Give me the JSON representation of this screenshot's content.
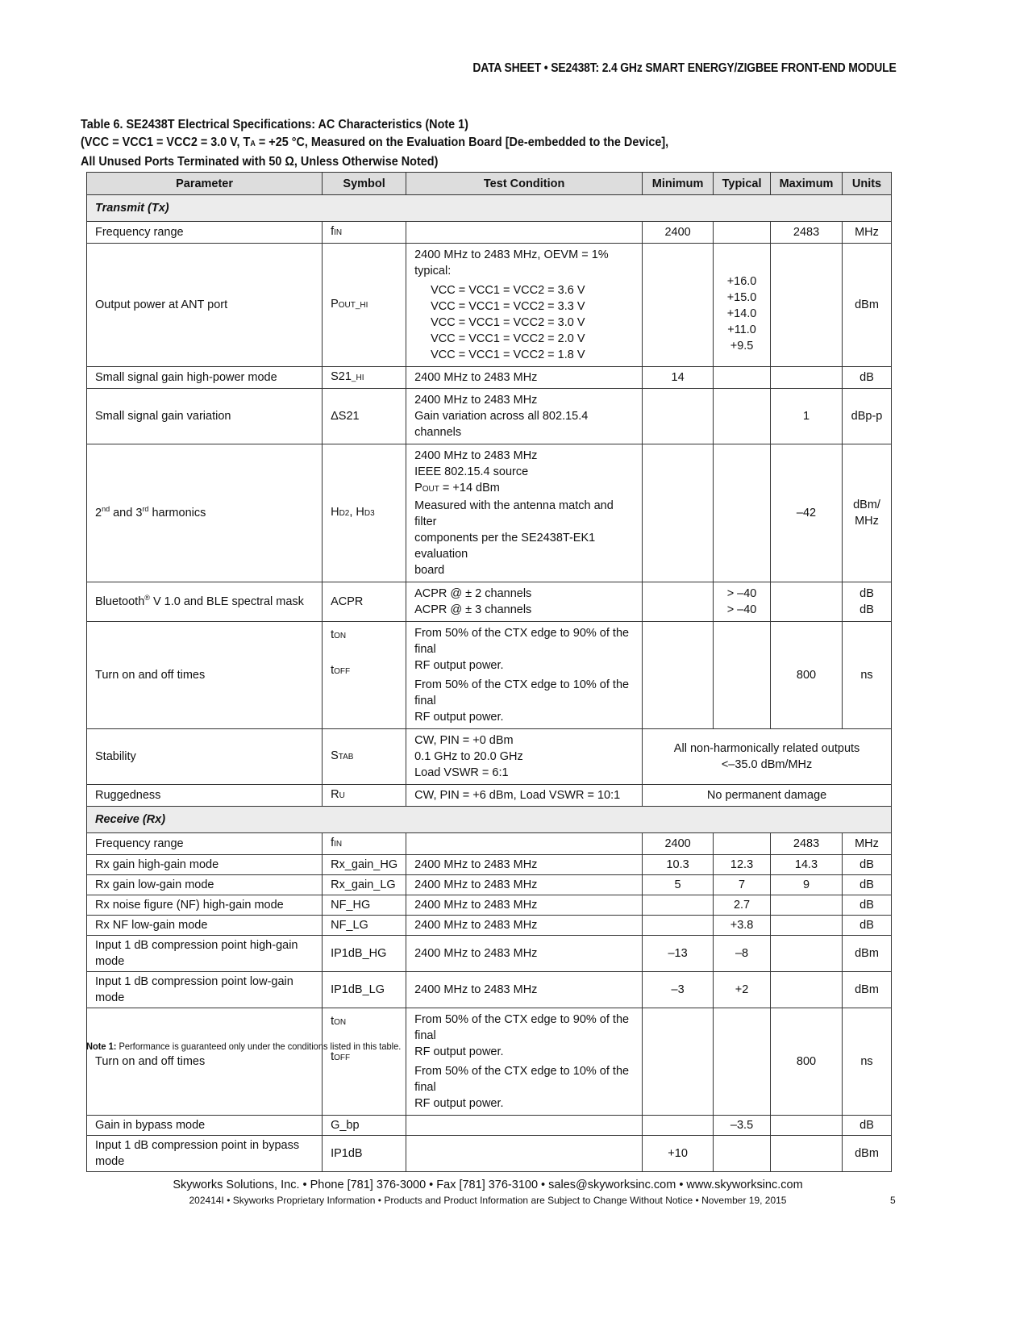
{
  "header": "DATA SHEET  •  SE2438T: 2.4 GHz SMART ENERGY/ZIGBEE FRONT-END MODULE",
  "title": {
    "line1": "Table 6. SE2438T Electrical Specifications: AC Characteristics (Note 1)",
    "line2a": "(VCC = VCC1 = VCC2 = 3.0 V, T",
    "line2sub": "A",
    "line2b": " = +25 °C, Measured on the Evaluation Board [De-embedded to the Device],",
    "line3": "All Unused Ports Terminated with 50 Ω, Unless Otherwise Noted)"
  },
  "columns": [
    "Parameter",
    "Symbol",
    "Test Condition",
    "Minimum",
    "Typical",
    "Maximum",
    "Units"
  ],
  "sections": [
    {
      "label": "Transmit (Tx)",
      "rows": [
        {
          "param": [
            {
              "t": "Frequency range"
            }
          ],
          "sym": [
            [
              {
                "t": "f"
              },
              {
                "s": "IN"
              }
            ]
          ],
          "cond": [],
          "min": [
            "2400"
          ],
          "typ": [],
          "max": [
            "2483"
          ],
          "units": [
            "MHz"
          ]
        },
        {
          "param": [
            {
              "t": "Output power at ANT port"
            }
          ],
          "sym": [
            [
              {
                "t": "P"
              },
              {
                "s": "OUT_HI"
              }
            ]
          ],
          "cond": [
            [
              {
                "t": "2400 MHz to 2483 MHz, OEVM = 1% typical:"
              }
            ]
          ],
          "cond_ind": [
            "VCC = VCC1 = VCC2 = 3.6 V",
            "VCC = VCC1 = VCC2 = 3.3 V",
            "VCC = VCC1 = VCC2 = 3.0 V",
            "VCC = VCC1 = VCC2 = 2.0 V",
            "VCC = VCC1 = VCC2 = 1.8 V"
          ],
          "min": [],
          "typ": [
            "+16.0",
            "+15.0",
            "+14.0",
            "+11.0",
            "+9.5"
          ],
          "typ_pad": true,
          "max": [],
          "units": [
            "dBm"
          ]
        },
        {
          "param": [
            {
              "t": "Small signal gain high-power mode"
            }
          ],
          "sym": [
            [
              {
                "t": "S21"
              },
              {
                "s": "_HI"
              }
            ]
          ],
          "cond": [
            [
              {
                "t": "2400 MHz to 2483 MHz"
              }
            ]
          ],
          "min": [
            "14"
          ],
          "typ": [],
          "max": [],
          "units": [
            "dB"
          ]
        },
        {
          "param": [
            {
              "t": "Small signal gain variation"
            }
          ],
          "sym": [
            [
              {
                "t": "ΔS21"
              }
            ]
          ],
          "cond": [
            [
              {
                "t": "2400 MHz to 2483 MHz"
              }
            ],
            [
              {
                "t": "Gain variation across all 802.15.4 channels"
              }
            ]
          ],
          "min": [],
          "typ": [],
          "max": [
            "1"
          ],
          "units": [
            "dBp-p"
          ]
        },
        {
          "param": [
            {
              "t": "2"
            },
            {
              "sup": "nd"
            },
            {
              "t": " and 3"
            },
            {
              "sup": "rd"
            },
            {
              "t": " harmonics"
            }
          ],
          "sym": [
            [
              {
                "t": "H"
              },
              {
                "s": "D2"
              },
              {
                "t": ", H"
              },
              {
                "s": "D3"
              }
            ]
          ],
          "cond": [
            [
              {
                "t": "2400 MHz to 2483 MHz"
              }
            ],
            [
              {
                "t": "IEEE 802.15.4 source"
              }
            ],
            [
              {
                "t": "P"
              },
              {
                "s": "OUT"
              },
              {
                "t": " = +14 dBm"
              }
            ],
            [
              {
                "t": "Measured with the antenna match and filter"
              }
            ],
            [
              {
                "t": "components per the SE2438T-EK1 evaluation"
              }
            ],
            [
              {
                "t": "board"
              }
            ]
          ],
          "min": [],
          "typ": [],
          "max": [
            "–42"
          ],
          "units": [
            "dBm/",
            "MHz"
          ]
        },
        {
          "param": [
            {
              "t": "Bluetooth"
            },
            {
              "sup": "®"
            },
            {
              "t": " V 1.0 and BLE spectral mask"
            }
          ],
          "sym": [
            [
              {
                "t": "ACPR"
              }
            ]
          ],
          "cond": [
            [
              {
                "t": "ACPR @ ± 2 channels"
              }
            ],
            [
              {
                "t": "ACPR @ ± 3 channels"
              }
            ]
          ],
          "min": [],
          "typ": [
            "> –40",
            "> –40"
          ],
          "max": [],
          "units": [
            "dB",
            "dB"
          ]
        },
        {
          "param": [
            {
              "t": "Turn on and off times"
            }
          ],
          "sym": [
            [
              {
                "t": "t"
              },
              {
                "s": "ON"
              }
            ],
            [
              {
                "t": "t"
              },
              {
                "s": "OFF"
              }
            ]
          ],
          "cond": [
            [
              {
                "t": "From 50% of the CTX edge to 90% of the final"
              }
            ],
            [
              {
                "t": "RF output power."
              }
            ],
            [
              {
                "t": "From 50% of the CTX edge to 10% of the final"
              }
            ],
            [
              {
                "t": "RF output power."
              }
            ]
          ],
          "min": [],
          "typ": [],
          "max": [
            "800"
          ],
          "units": [
            "ns"
          ],
          "turn": true
        },
        {
          "param": [
            {
              "t": "Stability"
            }
          ],
          "sym": [
            [
              {
                "t": "S"
              },
              {
                "s": "TAB"
              }
            ]
          ],
          "cond": [
            [
              {
                "t": "CW, PIN = +0 dBm"
              }
            ],
            [
              {
                "t": "0.1 GHz to 20.0 GHz"
              }
            ],
            [
              {
                "t": "Load VSWR = 6:1"
              }
            ]
          ],
          "span": [
            "All non-harmonically related outputs",
            "<–35.0  dBm/MHz"
          ]
        },
        {
          "param": [
            {
              "t": "Ruggedness"
            }
          ],
          "sym": [
            [
              {
                "t": "R"
              },
              {
                "s": "U"
              }
            ]
          ],
          "cond": [
            [
              {
                "t": "CW, PIN = +6 dBm, Load VSWR = 10:1"
              }
            ]
          ],
          "span": [
            "No permanent damage"
          ]
        }
      ]
    },
    {
      "label": "Receive (Rx)",
      "rows": [
        {
          "param": [
            {
              "t": "Frequency range"
            }
          ],
          "sym": [
            [
              {
                "t": "f"
              },
              {
                "s": "IN"
              }
            ]
          ],
          "cond": [],
          "min": [
            "2400"
          ],
          "typ": [],
          "max": [
            "2483"
          ],
          "units": [
            "MHz"
          ]
        },
        {
          "param": [
            {
              "t": "Rx gain high-gain mode"
            }
          ],
          "sym": [
            [
              {
                "t": "Rx_gain_HG"
              }
            ]
          ],
          "cond": [
            [
              {
                "t": "2400 MHz to 2483 MHz"
              }
            ]
          ],
          "min": [
            "10.3"
          ],
          "typ": [
            "12.3"
          ],
          "max": [
            "14.3"
          ],
          "units": [
            "dB"
          ]
        },
        {
          "param": [
            {
              "t": "Rx gain low-gain mode"
            }
          ],
          "sym": [
            [
              {
                "t": "Rx_gain_LG"
              }
            ]
          ],
          "cond": [
            [
              {
                "t": "2400 MHz to 2483 MHz"
              }
            ]
          ],
          "min": [
            "5"
          ],
          "typ": [
            "7"
          ],
          "max": [
            "9"
          ],
          "units": [
            "dB"
          ]
        },
        {
          "param": [
            {
              "t": "Rx noise figure (NF) high-gain mode"
            }
          ],
          "sym": [
            [
              {
                "t": "NF_HG"
              }
            ]
          ],
          "cond": [
            [
              {
                "t": "2400 MHz to 2483 MHz"
              }
            ]
          ],
          "min": [],
          "typ": [
            "2.7"
          ],
          "max": [],
          "units": [
            "dB"
          ]
        },
        {
          "param": [
            {
              "t": "Rx NF low-gain mode"
            }
          ],
          "sym": [
            [
              {
                "t": "NF_LG"
              }
            ]
          ],
          "cond": [
            [
              {
                "t": "2400 MHz to 2483 MHz"
              }
            ]
          ],
          "min": [],
          "typ": [
            "+3.8"
          ],
          "max": [],
          "units": [
            "dB"
          ]
        },
        {
          "param": [
            {
              "t": "Input 1 dB compression point high-gain mode"
            }
          ],
          "sym": [
            [
              {
                "t": "IP1dB_HG"
              }
            ]
          ],
          "cond": [
            [
              {
                "t": "2400 MHz to 2483 MHz"
              }
            ]
          ],
          "min": [
            "–13"
          ],
          "typ": [
            "–8"
          ],
          "max": [],
          "units": [
            "dBm"
          ]
        },
        {
          "param": [
            {
              "t": "Input 1 dB compression point low-gain mode"
            }
          ],
          "sym": [
            [
              {
                "t": "IP1dB_LG"
              }
            ]
          ],
          "cond": [
            [
              {
                "t": "2400 MHz to 2483 MHz"
              }
            ]
          ],
          "min": [
            "–3"
          ],
          "typ": [
            "+2"
          ],
          "max": [],
          "units": [
            "dBm"
          ]
        },
        {
          "param": [
            {
              "t": "Turn on and off times"
            }
          ],
          "sym": [
            [
              {
                "t": "t"
              },
              {
                "s": "ON"
              }
            ],
            [
              {
                "t": "t"
              },
              {
                "s": "OFF"
              }
            ]
          ],
          "cond": [
            [
              {
                "t": "From 50% of the CTX edge to 90% of the final"
              }
            ],
            [
              {
                "t": "RF output power."
              }
            ],
            [
              {
                "t": "From 50% of the CTX edge to 10% of the final"
              }
            ],
            [
              {
                "t": "RF output power."
              }
            ]
          ],
          "min": [],
          "typ": [],
          "max": [
            "800"
          ],
          "units": [
            "ns"
          ],
          "turn": true
        },
        {
          "param": [
            {
              "t": "Gain in bypass mode"
            }
          ],
          "sym": [
            [
              {
                "t": "G_bp"
              }
            ]
          ],
          "cond": [],
          "min": [],
          "typ": [
            "–3.5"
          ],
          "max": [],
          "units": [
            "dB"
          ]
        },
        {
          "param": [
            {
              "t": "Input 1 dB compression point in bypass mode"
            }
          ],
          "sym": [
            [
              {
                "t": "IP1dB"
              }
            ]
          ],
          "cond": [],
          "min": [
            "+10"
          ],
          "typ": [],
          "max": [],
          "units": [
            "dBm"
          ]
        }
      ]
    }
  ],
  "note_label": "Note 1:",
  "note_text": " Performance is guaranteed only under the conditions listed in this table.",
  "footer": {
    "line1": "Skyworks Solutions, Inc.  •  Phone [781] 376-3000  •  Fax [781] 376-3100  •  sales@skyworksinc.com  •  www.skyworksinc.com",
    "line2": "202414I  •  Skyworks Proprietary Information  •  Products and Product Information are Subject to Change Without Notice  •  November 19, 2015",
    "page": "5"
  }
}
